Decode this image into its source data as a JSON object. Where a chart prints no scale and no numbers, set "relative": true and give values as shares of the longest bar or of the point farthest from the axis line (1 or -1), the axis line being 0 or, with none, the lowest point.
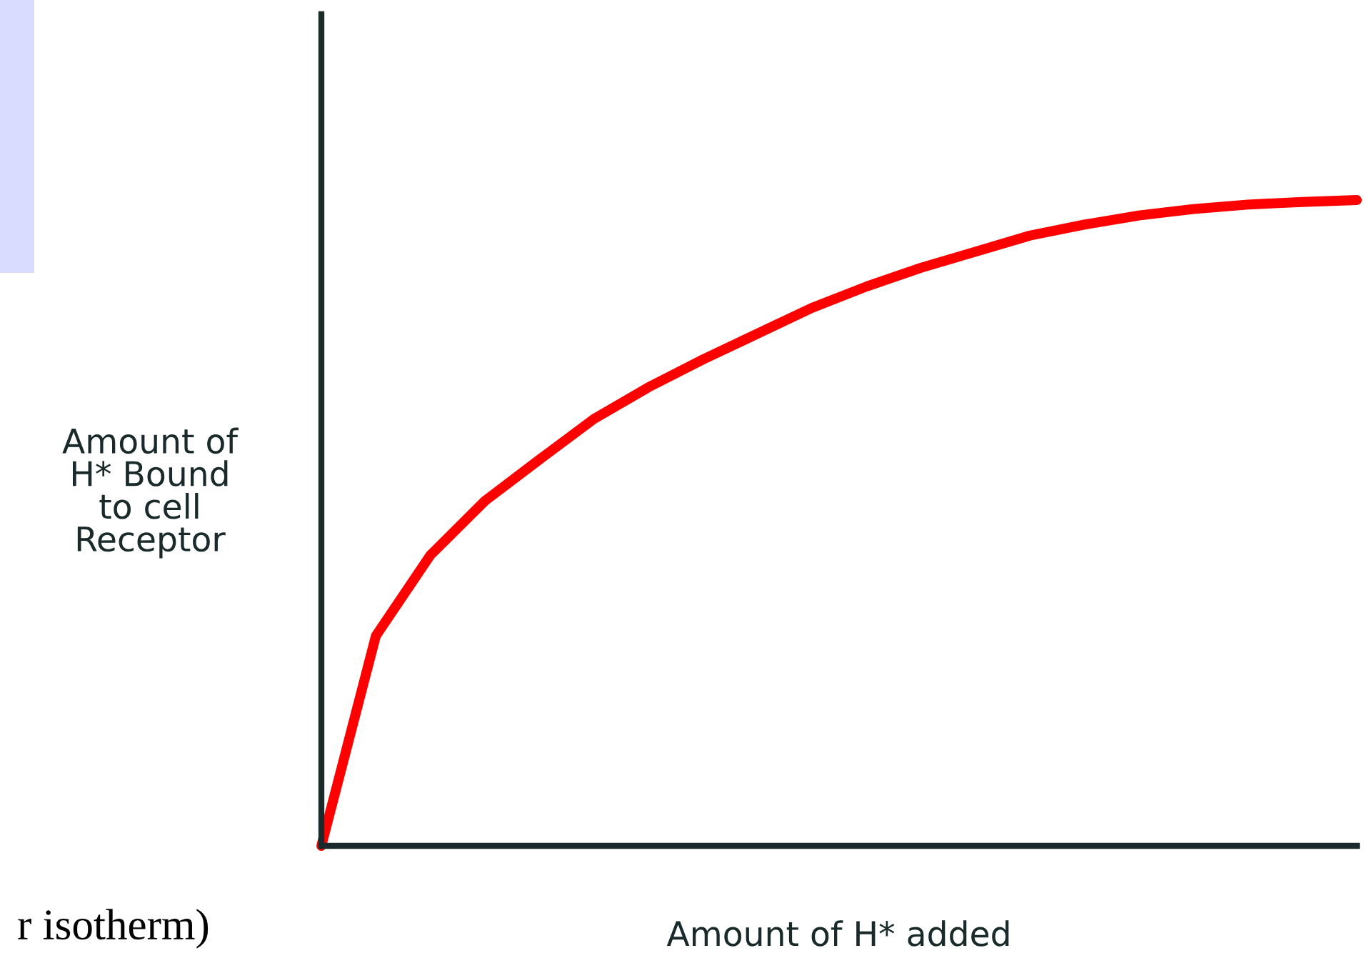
{
  "chart_data": {
    "type": "line",
    "relative": true,
    "xlabel": "Amount of H* added",
    "ylabel": "Amount of\nH* Bound\nto cell\nReceptor",
    "annotations": [
      "r isotherm)"
    ],
    "categories": [
      null,
      null,
      null,
      null,
      null,
      null,
      null,
      null,
      null,
      null,
      null,
      null,
      null,
      null,
      null,
      null,
      null,
      null,
      null,
      null
    ],
    "series": [
      {
        "color": "#ff0000",
        "values": [
          0,
          0.325,
          0.45,
          0.534,
          0.598,
          0.661,
          0.71,
          0.753,
          0.793,
          0.833,
          0.866,
          0.895,
          0.92,
          0.945,
          0.962,
          0.976,
          0.986,
          0.993,
          0.997,
          1
        ]
      }
    ],
    "legend": false,
    "marker": "none",
    "line_style": "solid"
  }
}
